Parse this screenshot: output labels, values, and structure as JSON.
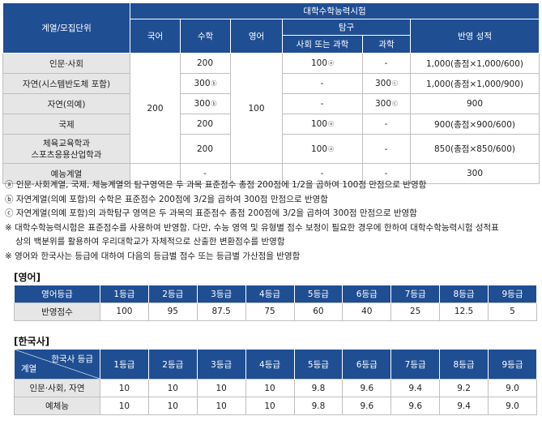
{
  "main_table": {
    "header": {
      "category": "계열/모집단위",
      "exam": "대학수학능력시험",
      "korean": "국어",
      "math": "수학",
      "english": "영어",
      "inquiry": "탐구",
      "social_or_science": "사회 또는 과학",
      "science": "과학",
      "reflection": "반영 성적"
    },
    "korean_value": "200",
    "english_value": "100",
    "rows": [
      {
        "label": "인문·사회",
        "math": "200",
        "math_mark": "",
        "social": "100",
        "social_mark": "ⓐ",
        "science": "-",
        "science_mark": "",
        "reflection": "1,000(총점×1,000/600)"
      },
      {
        "label": "자연(시스템반도체 포함)",
        "math": "300",
        "math_mark": "ⓑ",
        "social": "-",
        "social_mark": "",
        "science": "300",
        "science_mark": "ⓒ",
        "reflection": "1,000(총점×1,000/900)"
      },
      {
        "label": "자연(의예)",
        "math": "300",
        "math_mark": "ⓑ",
        "social": "-",
        "social_mark": "",
        "science": "300",
        "science_mark": "ⓒ",
        "reflection": "900"
      },
      {
        "label": "국제",
        "math": "200",
        "math_mark": "",
        "social": "100",
        "social_mark": "ⓐ",
        "science": "-",
        "science_mark": "",
        "reflection": "900(총점×900/600)"
      },
      {
        "label_line1": "체육교육학과",
        "label_line2": "스포츠응용산업학과",
        "math": "200",
        "math_mark": "",
        "social": "100",
        "social_mark": "ⓐ",
        "science": "-",
        "science_mark": "",
        "reflection": "850(총점×850/600)"
      },
      {
        "label": "예능계열",
        "math": "-",
        "math_mark": "",
        "social": "-",
        "social_mark": "",
        "science": "-",
        "science_mark": "",
        "reflection": "300"
      }
    ]
  },
  "notes": [
    "ⓐ 인문·사회계열, 국제, 체능계열의 탐구영역은 두 과목 표준점수 총점 200점에 1/2을 곱하여 100점 만점으로 반영함",
    "ⓑ 자연계열(의예 포함)의 수학은 표준점수 200점에 3/2을 곱하여 300점 만점으로 반영함",
    "ⓒ 자연계열(의예 포함)의 과학탐구 영역은 두 과목의 표준점수 총점 200점에 3/2을 곱하여 300점 만점으로 반영함",
    "※ 대학수학능력시험은 표준점수를 사용하여 반영함. 다만, 수능 영역 및 유형별 점수 보정이 필요한 경우에 한하여 대학수학능력시험 성적표",
    "상의 백분위를 활용하여 우리대학교가 자체적으로 산출한 변환점수를 반영함",
    "※ 영어와 한국사는 등급에 대하여 다음의 등급별 점수 또는 등급별 가산점을 반영함"
  ],
  "english_section": {
    "title": "[영어]",
    "header_label": "영어등급",
    "grades": [
      "1등급",
      "2등급",
      "3등급",
      "4등급",
      "5등급",
      "6등급",
      "7등급",
      "8등급",
      "9등급"
    ],
    "row_label": "반영점수",
    "values": [
      "100",
      "95",
      "87.5",
      "75",
      "60",
      "40",
      "25",
      "12.5",
      "5"
    ]
  },
  "history_section": {
    "title": "[한국사]",
    "header_top": "한국사 등급",
    "header_bottom": "계열",
    "grades": [
      "1등급",
      "2등급",
      "3등급",
      "4등급",
      "5등급",
      "6등급",
      "7등급",
      "8등급",
      "9등급"
    ],
    "rows": [
      {
        "label": "인문·사회, 자연",
        "values": [
          "10",
          "10",
          "10",
          "10",
          "9.8",
          "9.6",
          "9.4",
          "9.2",
          "9.0"
        ]
      },
      {
        "label": "예체능",
        "values": [
          "10",
          "10",
          "10",
          "10",
          "9.8",
          "9.6",
          "9.6",
          "9.4",
          "9.0"
        ]
      }
    ]
  }
}
